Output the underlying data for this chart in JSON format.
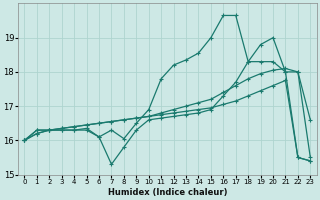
{
  "xlabel": "Humidex (Indice chaleur)",
  "xlim": [
    -0.5,
    23.5
  ],
  "ylim": [
    15,
    20
  ],
  "yticks": [
    15,
    16,
    17,
    18,
    19
  ],
  "xticks": [
    0,
    1,
    2,
    3,
    4,
    5,
    6,
    7,
    8,
    9,
    10,
    11,
    12,
    13,
    14,
    15,
    16,
    17,
    18,
    19,
    20,
    21,
    22,
    23
  ],
  "bg_color": "#cde8e5",
  "grid_color": "#aed4cf",
  "line_color": "#1a7a6e",
  "series": [
    {
      "x": [
        0,
        1,
        2,
        3,
        4,
        5,
        6,
        7,
        8,
        9,
        10,
        11,
        12,
        13,
        14,
        15,
        16,
        17,
        18,
        19,
        20,
        21,
        22,
        23
      ],
      "y": [
        16.0,
        16.3,
        16.3,
        16.3,
        16.3,
        16.35,
        16.1,
        16.3,
        16.05,
        16.5,
        16.9,
        17.8,
        18.2,
        18.35,
        18.55,
        19.0,
        19.65,
        19.65,
        18.3,
        18.3,
        18.3,
        18.0,
        18.0,
        16.6
      ]
    },
    {
      "x": [
        0,
        1,
        2,
        3,
        4,
        5,
        6,
        7,
        8,
        9,
        10,
        11,
        12,
        13,
        14,
        15,
        16,
        17,
        18,
        19,
        20,
        21,
        22,
        23
      ],
      "y": [
        16.0,
        16.3,
        16.3,
        16.3,
        16.3,
        16.3,
        16.1,
        15.3,
        15.8,
        16.3,
        16.6,
        16.65,
        16.7,
        16.75,
        16.8,
        16.9,
        17.3,
        17.7,
        18.3,
        18.8,
        19.0,
        18.0,
        15.5,
        15.4
      ]
    },
    {
      "x": [
        0,
        1,
        2,
        3,
        4,
        5,
        6,
        7,
        8,
        9,
        10,
        11,
        12,
        13,
        14,
        15,
        16,
        17,
        18,
        19,
        20,
        21,
        22,
        23
      ],
      "y": [
        16.0,
        16.2,
        16.3,
        16.35,
        16.4,
        16.45,
        16.5,
        16.55,
        16.6,
        16.65,
        16.7,
        16.8,
        16.9,
        17.0,
        17.1,
        17.2,
        17.4,
        17.6,
        17.8,
        17.95,
        18.05,
        18.1,
        18.0,
        15.5
      ]
    },
    {
      "x": [
        0,
        1,
        2,
        3,
        4,
        5,
        6,
        7,
        8,
        9,
        10,
        11,
        12,
        13,
        14,
        15,
        16,
        17,
        18,
        19,
        20,
        21,
        22,
        23
      ],
      "y": [
        16.0,
        16.2,
        16.3,
        16.35,
        16.4,
        16.45,
        16.5,
        16.55,
        16.6,
        16.65,
        16.7,
        16.75,
        16.8,
        16.85,
        16.9,
        16.95,
        17.05,
        17.15,
        17.3,
        17.45,
        17.6,
        17.75,
        15.5,
        15.4
      ]
    }
  ]
}
